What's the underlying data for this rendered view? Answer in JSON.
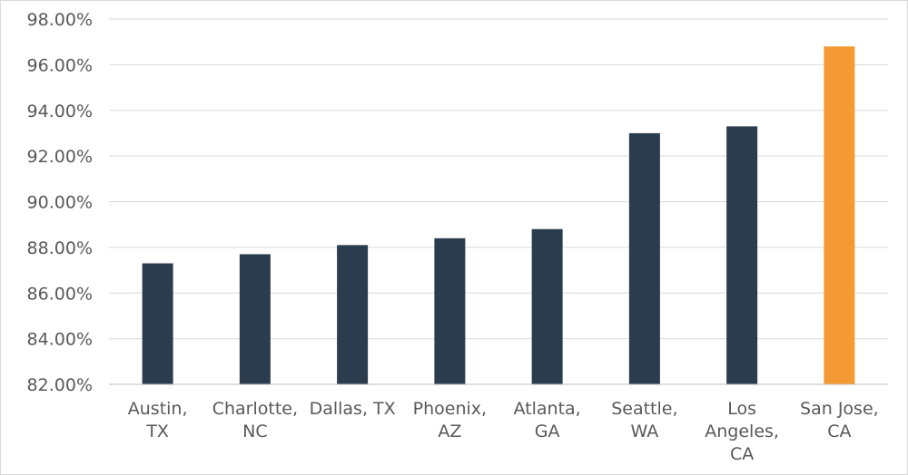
{
  "chart_data": {
    "type": "bar",
    "title": "",
    "xlabel": "",
    "ylabel": "",
    "ylim": [
      82,
      98
    ],
    "y_ticks": [
      82,
      84,
      86,
      88,
      90,
      92,
      94,
      96,
      98
    ],
    "y_tick_labels": [
      "82.00%",
      "84.00%",
      "86.00%",
      "88.00%",
      "90.00%",
      "92.00%",
      "94.00%",
      "96.00%",
      "98.00%"
    ],
    "grid": true,
    "legend": "none",
    "categories": [
      [
        "Austin,",
        "TX"
      ],
      [
        "Charlotte,",
        "NC"
      ],
      [
        "Dallas, TX"
      ],
      [
        "Phoenix,",
        "AZ"
      ],
      [
        "Atlanta,",
        "GA"
      ],
      [
        "Seattle,",
        "WA"
      ],
      [
        "Los",
        "Angeles,",
        "CA"
      ],
      [
        "San Jose,",
        "CA"
      ]
    ],
    "values": [
      87.3,
      87.7,
      88.1,
      88.4,
      88.8,
      93.0,
      93.3,
      96.8
    ],
    "colors": [
      "#2b3c4e",
      "#2b3c4e",
      "#2b3c4e",
      "#2b3c4e",
      "#2b3c4e",
      "#2b3c4e",
      "#2b3c4e",
      "#f49a35"
    ]
  }
}
